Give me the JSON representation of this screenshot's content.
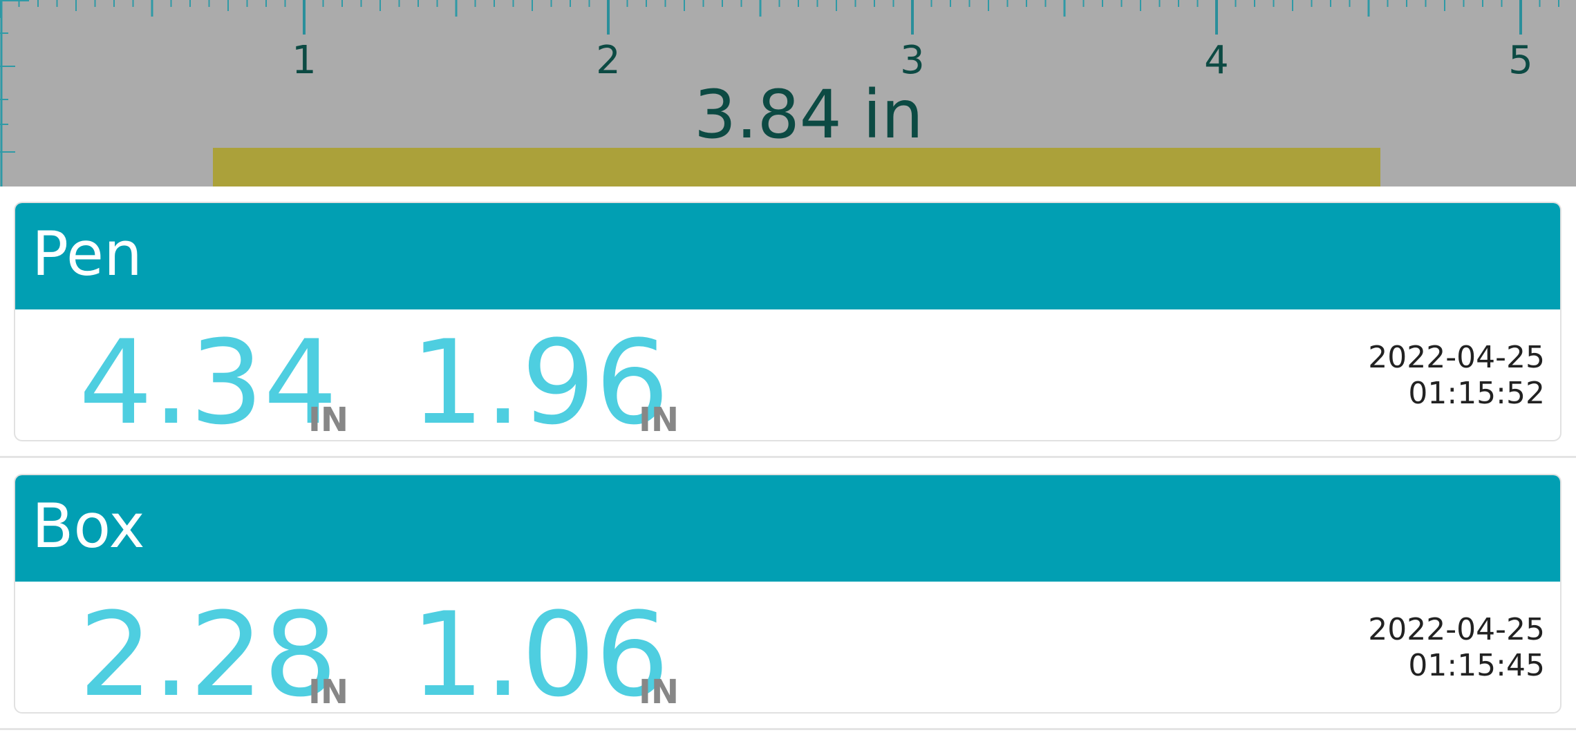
{
  "ruler": {
    "unit": "in",
    "tick_labels": [
      "1",
      "2",
      "3",
      "4",
      "5"
    ],
    "measurement": "3.84 in",
    "highlight_color": "#aba13a",
    "background_color": "#ababab"
  },
  "measurements": [
    {
      "name": "Pen",
      "length": "4.34",
      "length_unit": "IN",
      "width": "1.96",
      "width_unit": "IN",
      "date": "2022-04-25",
      "time": "01:15:52"
    },
    {
      "name": "Box",
      "length": "2.28",
      "length_unit": "IN",
      "width": "1.06",
      "width_unit": "IN",
      "date": "2022-04-25",
      "time": "01:15:45"
    }
  ],
  "colors": {
    "header": "#019fb3",
    "value": "#4ecee0",
    "unit": "#878787"
  }
}
